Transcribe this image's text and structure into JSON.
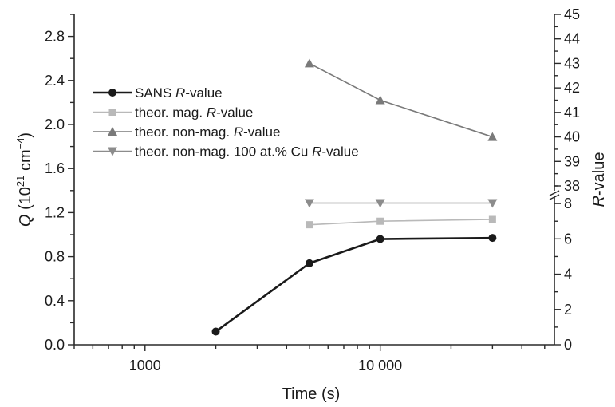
{
  "chart_data": {
    "type": "line",
    "x_scale": "log",
    "xlim": [
      500,
      55000
    ],
    "x_ticks": [
      1000,
      10000
    ],
    "x_tick_labels": [
      "1000",
      "10 000"
    ],
    "xlabel": "Time (s)",
    "ylabel_left": {
      "italic": "Q",
      "text": " (10",
      "sup1": "21",
      "text2": " cm",
      "sup2": "−4",
      "close": ")"
    },
    "ylim_left": [
      0,
      3.0
    ],
    "left_ticks": [
      "0.0",
      "0.4",
      "0.8",
      "1.2",
      "1.6",
      "2.0",
      "2.4",
      "2.8"
    ],
    "ylabel_right": {
      "italic": "R",
      "text": "-value"
    },
    "right_axis": {
      "broken": true,
      "lower_range": [
        0,
        9
      ],
      "lower_ticks": [
        "0",
        "2",
        "4",
        "6",
        "8"
      ],
      "upper_range": [
        38,
        45
      ],
      "upper_ticks": [
        "38",
        "39",
        "40",
        "41",
        "42",
        "43",
        "44",
        "45"
      ]
    },
    "legend_position": "upper-left",
    "series": [
      {
        "name_parts": [
          "SANS ",
          "R",
          "-value"
        ],
        "marker": "circle",
        "color": "#1a1a1a",
        "line_width": 2.6,
        "points": [
          [
            2000,
            0.12
          ],
          [
            5000,
            0.74
          ],
          [
            10000,
            0.96
          ],
          [
            30000,
            0.97
          ]
        ]
      },
      {
        "name_parts": [
          "theor. mag. ",
          "R",
          "-value"
        ],
        "marker": "square",
        "color": "#b9b9b9",
        "line_width": 1.6,
        "points": [
          [
            5000,
            6.8
          ],
          [
            10000,
            7.0
          ],
          [
            30000,
            7.1
          ]
        ]
      },
      {
        "name_parts": [
          "theor. non-mag. ",
          "R",
          "-value"
        ],
        "marker": "triangle-up",
        "color": "#7a7a7a",
        "line_width": 1.6,
        "points": [
          [
            5000,
            43.0
          ],
          [
            10000,
            41.5
          ],
          [
            30000,
            40.0
          ]
        ]
      },
      {
        "name_parts": [
          "theor. non-mag. 100 at.% Cu ",
          "R",
          "-value"
        ],
        "marker": "triangle-down",
        "color": "#8c8c8c",
        "line_width": 1.6,
        "points": [
          [
            5000,
            37.3
          ],
          [
            10000,
            37.3
          ],
          [
            30000,
            37.3
          ]
        ]
      }
    ]
  }
}
